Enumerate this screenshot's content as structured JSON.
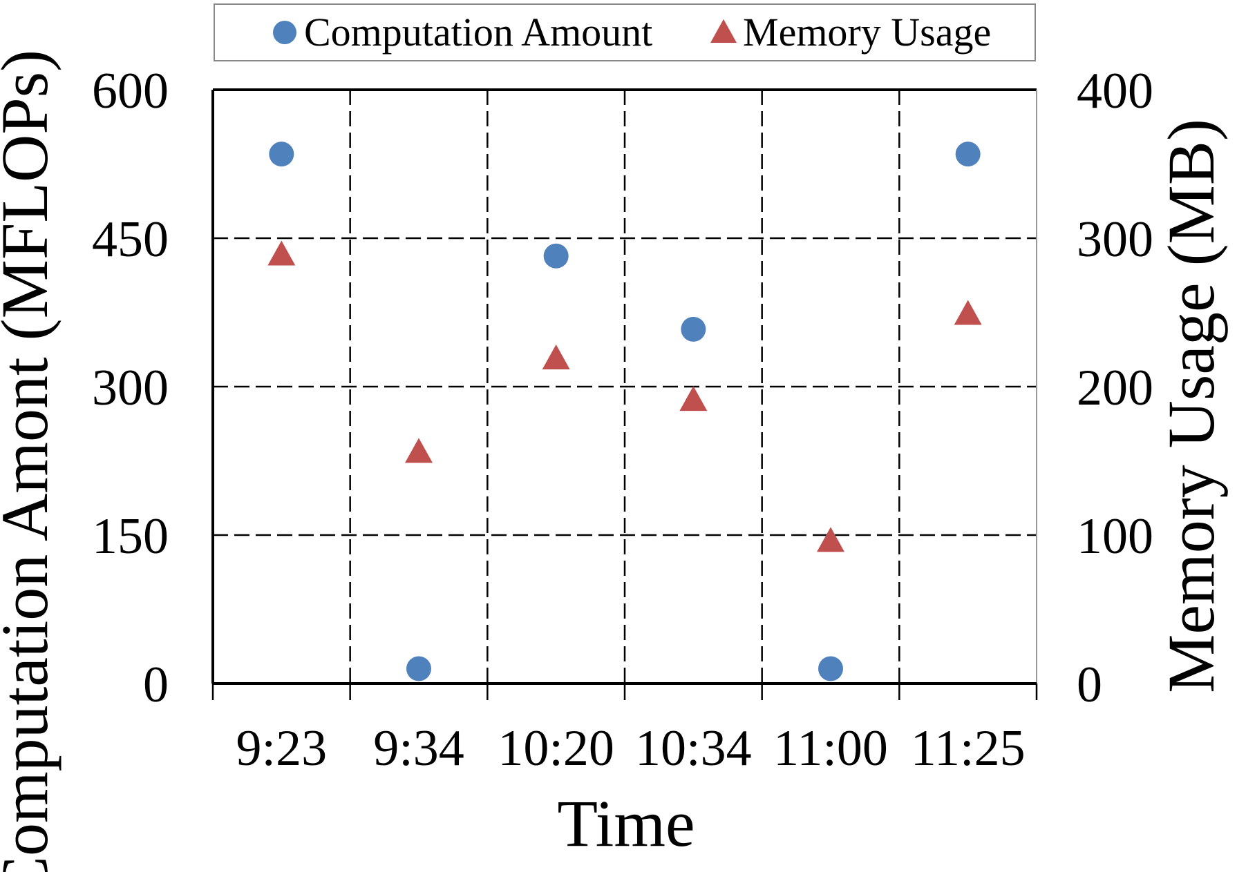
{
  "chart_data": {
    "type": "scatter",
    "title": "",
    "xlabel": "Time",
    "ylabel_left": "Computation Amont (MFLOPs)",
    "ylabel_right": "Memory Usage (MB)",
    "categories": [
      "9:23",
      "9:34",
      "10:20",
      "10:34",
      "11:00",
      "11:25"
    ],
    "y_left": {
      "ylim": [
        0,
        600
      ],
      "ticks": [
        0,
        150,
        300,
        450,
        600
      ]
    },
    "y_right": {
      "ylim": [
        0,
        400
      ],
      "ticks": [
        0,
        100,
        200,
        300,
        400
      ]
    },
    "grid": true,
    "legend_position": "top",
    "series": [
      {
        "name": "Computation Amount",
        "axis": "left",
        "marker": "circle",
        "color": "#4f81bd",
        "values": [
          535,
          15,
          432,
          358,
          15,
          535
        ]
      },
      {
        "name": "Memory Usage",
        "axis": "right",
        "marker": "triangle",
        "color": "#c0504d",
        "values": [
          288,
          155,
          218,
          190,
          95,
          248
        ]
      }
    ]
  }
}
